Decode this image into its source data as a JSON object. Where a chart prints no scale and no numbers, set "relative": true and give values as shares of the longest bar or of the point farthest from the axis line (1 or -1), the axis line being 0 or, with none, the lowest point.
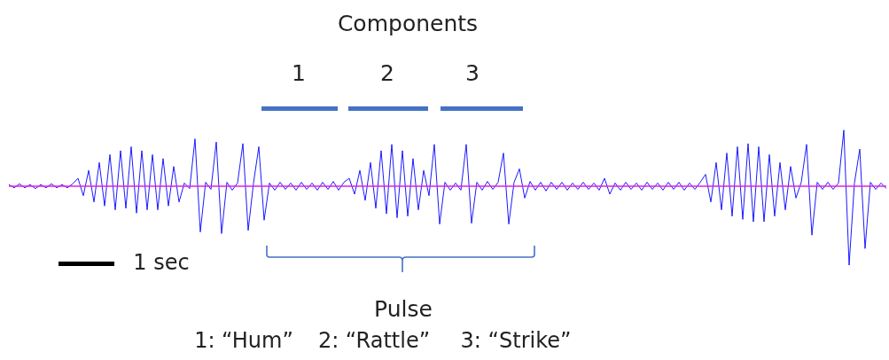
{
  "chart_data": {
    "type": "line",
    "relative": true,
    "legend": false,
    "marker": "none",
    "line_style": "solid",
    "categories": [
      null,
      null,
      null,
      null,
      null,
      null,
      null,
      null,
      null,
      null,
      null,
      null,
      null,
      null,
      null,
      null,
      null,
      null,
      null,
      null,
      null,
      null,
      null,
      null,
      null,
      null,
      null,
      null,
      null,
      null,
      null,
      null,
      null,
      null,
      null,
      null,
      null,
      null,
      null,
      null,
      null,
      null,
      null,
      null,
      null,
      null,
      null,
      null,
      null,
      null,
      null,
      null,
      null,
      null,
      null,
      null,
      null,
      null,
      null,
      null,
      null,
      null,
      null,
      null,
      null,
      null,
      null,
      null,
      null,
      null,
      null,
      null,
      null,
      null,
      null,
      null,
      null,
      null,
      null,
      null,
      null,
      null,
      null,
      null,
      null,
      null,
      null,
      null,
      null,
      null,
      null,
      null,
      null,
      null,
      null,
      null,
      null,
      null,
      null,
      null,
      null,
      null,
      null,
      null,
      null,
      null,
      null,
      null,
      null,
      null,
      null,
      null,
      null,
      null,
      null,
      null,
      null,
      null,
      null,
      null,
      null,
      null,
      null,
      null,
      null,
      null,
      null,
      null,
      null,
      null,
      null,
      null,
      null,
      null,
      null,
      null,
      null,
      null,
      null,
      null,
      null,
      null,
      null,
      null,
      null,
      null,
      null,
      null,
      null,
      null,
      null,
      null,
      null,
      null,
      null,
      null,
      null,
      null,
      null,
      null,
      null,
      null,
      null,
      null,
      null,
      null
    ],
    "series": [
      {
        "color": "#1a1aff",
        "values": [
          0.02,
          -0.02,
          0.03,
          -0.02,
          0.02,
          -0.03,
          0.02,
          -0.02,
          0.03,
          -0.02,
          0.02,
          -0.02,
          0.03,
          0.1,
          -0.12,
          0.2,
          -0.2,
          0.3,
          -0.25,
          0.4,
          -0.3,
          0.45,
          -0.28,
          0.5,
          -0.34,
          0.45,
          -0.3,
          0.4,
          -0.3,
          0.35,
          -0.25,
          0.25,
          -0.2,
          0.04,
          -0.03,
          0.6,
          -0.58,
          0.05,
          -0.04,
          0.56,
          -0.6,
          0.05,
          -0.05,
          0.04,
          0.54,
          -0.56,
          0.04,
          0.5,
          -0.43,
          0.04,
          -0.05,
          0.05,
          -0.04,
          0.04,
          -0.05,
          0.05,
          -0.04,
          0.04,
          -0.05,
          0.05,
          -0.04,
          0.06,
          -0.05,
          0.05,
          0.1,
          -0.1,
          0.2,
          -0.18,
          0.3,
          -0.28,
          0.45,
          -0.35,
          0.53,
          -0.4,
          0.45,
          -0.38,
          0.35,
          -0.3,
          0.2,
          -0.12,
          0.53,
          -0.48,
          0.05,
          -0.05,
          0.04,
          -0.05,
          0.53,
          -0.47,
          0.05,
          -0.05,
          0.06,
          -0.04,
          0.05,
          0.42,
          -0.48,
          0.05,
          0.22,
          -0.15,
          0.06,
          -0.05,
          0.05,
          -0.06,
          0.05,
          -0.04,
          0.05,
          -0.05,
          0.04,
          -0.04,
          0.05,
          -0.04,
          0.04,
          -0.05,
          0.1,
          -0.1,
          0.04,
          -0.05,
          0.05,
          -0.04,
          0.04,
          -0.05,
          0.05,
          -0.04,
          0.04,
          -0.05,
          0.05,
          -0.04,
          0.05,
          -0.05,
          0.04,
          -0.04,
          0.05,
          0.15,
          -0.2,
          0.3,
          -0.3,
          0.42,
          -0.38,
          0.5,
          -0.42,
          0.54,
          -0.45,
          0.5,
          -0.45,
          0.4,
          -0.38,
          0.3,
          -0.3,
          0.25,
          -0.15,
          0.05,
          0.53,
          -0.62,
          0.05,
          -0.04,
          0.05,
          -0.04,
          0.04,
          0.71,
          -1,
          0.04,
          0.47,
          -0.79,
          0.05,
          -0.04,
          0.04,
          -0.03
        ]
      }
    ],
    "ref_lines": [
      {
        "axis": "y",
        "value": 0,
        "color": "#e020e0"
      }
    ],
    "annotations": [
      "Components",
      "1",
      "2",
      "3",
      "1 sec",
      "Pulse",
      "1: “Hum”",
      "2: “Rattle”",
      "3: “Strike”"
    ]
  }
}
